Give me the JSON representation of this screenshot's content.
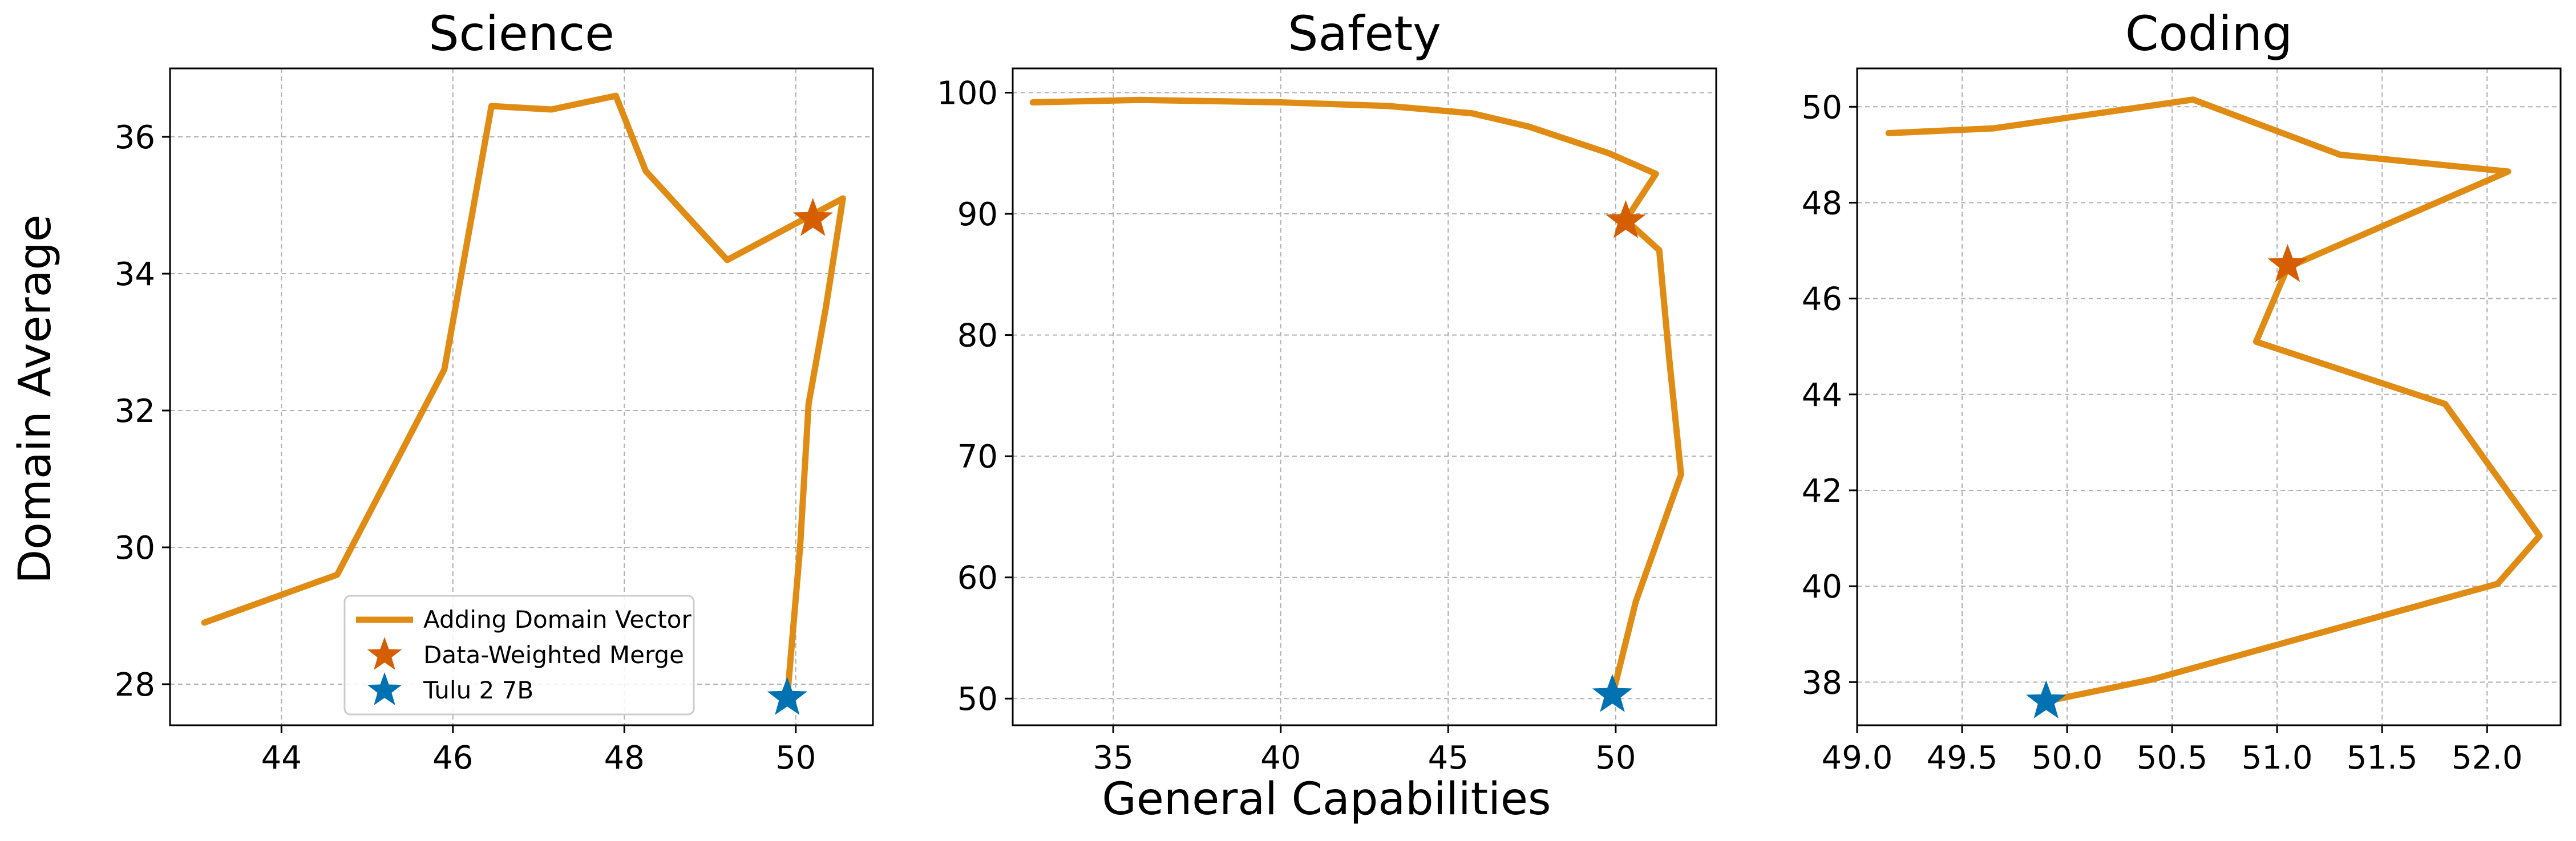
{
  "figure": {
    "xlabel": "General Capabilities",
    "ylabel": "Domain Average"
  },
  "legend": {
    "placement": "lower-right of first panel",
    "entries": [
      {
        "label": "Adding Domain Vector",
        "marker": "line",
        "color": "#E08C14"
      },
      {
        "label": "Data-Weighted Merge",
        "marker": "star",
        "color": "#D55E00"
      },
      {
        "label": "Tulu 2 7B",
        "marker": "star",
        "color": "#0072B2"
      }
    ]
  },
  "colors": {
    "line": "#E08C14",
    "merge_star": "#D55E00",
    "base_star": "#0072B2"
  },
  "chart_data": [
    {
      "type": "line",
      "title": "Science",
      "xlim": [
        42.7,
        50.9
      ],
      "ylim": [
        27.4,
        37.0
      ],
      "xticks": [
        44,
        46,
        48,
        50
      ],
      "yticks": [
        28,
        30,
        32,
        34,
        36
      ],
      "xtick_labels": [
        "44",
        "46",
        "48",
        "50"
      ],
      "ytick_labels": [
        "28",
        "30",
        "32",
        "34",
        "36"
      ],
      "grid": true,
      "series": [
        {
          "name": "Adding Domain Vector",
          "points": [
            [
              43.1,
              28.9
            ],
            [
              44.65,
              29.6
            ],
            [
              45.9,
              32.6
            ],
            [
              46.45,
              36.45
            ],
            [
              47.15,
              36.4
            ],
            [
              47.9,
              36.6
            ],
            [
              48.25,
              35.5
            ],
            [
              49.2,
              34.2
            ],
            [
              50.55,
              35.1
            ],
            [
              50.35,
              33.5
            ],
            [
              50.15,
              32.1
            ],
            [
              50.05,
              30.0
            ],
            [
              49.9,
              27.8
            ]
          ]
        }
      ],
      "markers": [
        {
          "name": "Data-Weighted Merge",
          "x": 50.2,
          "y": 34.8
        },
        {
          "name": "Tulu 2 7B",
          "x": 49.9,
          "y": 27.8
        }
      ]
    },
    {
      "type": "line",
      "title": "Safety",
      "xlim": [
        32.0,
        53.0
      ],
      "ylim": [
        47.8,
        102.0
      ],
      "xticks": [
        35,
        40,
        45,
        50
      ],
      "yticks": [
        50,
        60,
        70,
        80,
        90,
        100
      ],
      "xtick_labels": [
        "35",
        "40",
        "45",
        "50"
      ],
      "ytick_labels": [
        "50",
        "60",
        "70",
        "80",
        "90",
        "100"
      ],
      "grid": true,
      "series": [
        {
          "name": "Adding Domain Vector",
          "points": [
            [
              32.6,
              99.2
            ],
            [
              35.8,
              99.4
            ],
            [
              40.0,
              99.2
            ],
            [
              43.2,
              98.9
            ],
            [
              45.7,
              98.3
            ],
            [
              47.4,
              97.2
            ],
            [
              49.8,
              95.0
            ],
            [
              51.2,
              93.3
            ],
            [
              50.3,
              89.5
            ],
            [
              51.3,
              87.0
            ],
            [
              51.6,
              78.0
            ],
            [
              51.95,
              68.5
            ],
            [
              50.6,
              58.0
            ],
            [
              49.9,
              50.2
            ]
          ]
        }
      ],
      "markers": [
        {
          "name": "Data-Weighted Merge",
          "x": 50.3,
          "y": 89.4
        },
        {
          "name": "Tulu 2 7B",
          "x": 49.9,
          "y": 50.3
        }
      ]
    },
    {
      "type": "line",
      "title": "Coding",
      "xlim": [
        49.0,
        52.35
      ],
      "ylim": [
        37.1,
        50.8
      ],
      "xticks": [
        49.0,
        49.5,
        50.0,
        50.5,
        51.0,
        51.5,
        52.0
      ],
      "yticks": [
        38,
        40,
        42,
        44,
        46,
        48,
        50
      ],
      "xtick_labels": [
        "49.0",
        "49.5",
        "50.0",
        "50.5",
        "51.0",
        "51.5",
        "52.0"
      ],
      "ytick_labels": [
        "38",
        "40",
        "42",
        "44",
        "46",
        "48",
        "50"
      ],
      "grid": true,
      "series": [
        {
          "name": "Adding Domain Vector",
          "points": [
            [
              49.15,
              49.45
            ],
            [
              49.65,
              49.55
            ],
            [
              50.6,
              50.15
            ],
            [
              51.3,
              49.0
            ],
            [
              52.1,
              48.65
            ],
            [
              51.05,
              46.65
            ],
            [
              50.9,
              45.1
            ],
            [
              51.8,
              43.8
            ],
            [
              52.25,
              41.05
            ],
            [
              52.05,
              40.05
            ],
            [
              50.4,
              38.05
            ],
            [
              49.9,
              37.6
            ]
          ]
        }
      ],
      "markers": [
        {
          "name": "Data-Weighted Merge",
          "x": 51.05,
          "y": 46.7
        },
        {
          "name": "Tulu 2 7B",
          "x": 49.9,
          "y": 37.6
        }
      ]
    }
  ]
}
